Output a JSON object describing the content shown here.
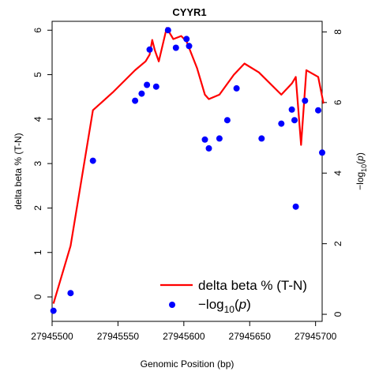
{
  "chart_data": {
    "type": "line+scatter",
    "title": "CYYR1",
    "xlabel": "Genomic Position (bp)",
    "ylabel_left": "delta beta % (T-N)",
    "ylabel_right_prefix": "−log",
    "ylabel_right_sub": "10",
    "ylabel_right_var": "p",
    "xlim": [
      27945500,
      27945705
    ],
    "ylim_left": [
      -0.55,
      6.2
    ],
    "ylim_right": [
      -0.2,
      8.3
    ],
    "x_ticks": [
      27945500,
      27945550,
      27945600,
      27945650,
      27945700
    ],
    "y_left_ticks": [
      0,
      1,
      2,
      3,
      4,
      5,
      6
    ],
    "y_right_ticks": [
      0,
      2,
      4,
      6,
      8
    ],
    "colors": {
      "line": "#ff0000",
      "points": "#0000ff"
    },
    "legend": {
      "position": "bottom-right",
      "line_label": "delta beta % (T-N)",
      "points_label_prefix": "−log",
      "points_label_sub": "10",
      "points_label_var": "p"
    },
    "series": [
      {
        "name": "delta beta % (T-N)",
        "kind": "line",
        "axis": "left",
        "x": [
          27945501,
          27945514,
          27945531,
          27945546,
          27945563,
          27945571,
          27945574,
          27945576,
          27945578,
          27945581,
          27945587,
          27945592,
          27945598,
          27945602,
          27945610,
          27945616,
          27945619,
          27945627,
          27945638,
          27945646,
          27945657,
          27945674,
          27945682,
          27945685,
          27945689,
          27945693,
          27945702,
          27945706
        ],
        "y": [
          -0.15,
          1.15,
          4.2,
          4.6,
          5.1,
          5.3,
          5.45,
          5.78,
          5.55,
          5.3,
          6.05,
          5.8,
          5.87,
          5.75,
          5.15,
          4.55,
          4.45,
          4.55,
          5.0,
          5.25,
          5.05,
          4.55,
          4.8,
          4.95,
          3.42,
          5.1,
          4.95,
          4.35
        ]
      },
      {
        "name": "−log10(p)",
        "kind": "points",
        "axis": "right",
        "x": [
          27945501,
          27945514,
          27945531,
          27945563,
          27945568,
          27945572,
          27945574,
          27945579,
          27945588,
          27945594,
          27945602,
          27945604,
          27945616,
          27945619,
          27945627,
          27945633,
          27945640,
          27945659,
          27945674,
          27945682,
          27945684,
          27945685,
          27945692,
          27945702,
          27945705
        ],
        "y": [
          0.1,
          0.6,
          4.35,
          6.05,
          6.25,
          6.5,
          7.5,
          6.45,
          8.05,
          7.55,
          7.8,
          7.6,
          4.95,
          4.7,
          4.98,
          5.5,
          6.4,
          4.98,
          5.4,
          5.8,
          5.5,
          3.05,
          6.05,
          5.78,
          4.58
        ]
      }
    ]
  }
}
